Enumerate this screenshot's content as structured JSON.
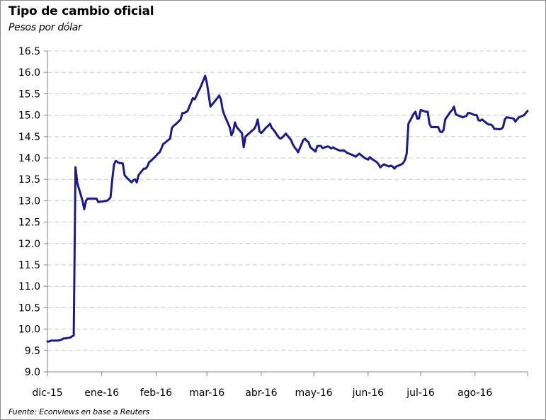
{
  "title": "Tipo de cambio oficial",
  "subtitle": "Pesos por dólar",
  "source": "Fuente: Econviews en base a Reuters",
  "colors": {
    "line": "#1a1a8c",
    "grid": "#c8c8c8",
    "axis": "#808080"
  },
  "chart_data": {
    "type": "line",
    "title": "Tipo de cambio oficial",
    "subtitle": "Pesos por dólar",
    "xlabel": "",
    "ylabel": "",
    "ylim": [
      9.0,
      16.5
    ],
    "yticks": [
      "9.0",
      "9.5",
      "10.0",
      "10.5",
      "11.0",
      "11.5",
      "12.0",
      "12.5",
      "13.0",
      "13.5",
      "14.0",
      "14.5",
      "15.0",
      "15.5",
      "16.0",
      "16.5"
    ],
    "x_tick_labels": [
      "dic-15",
      "ene-16",
      "feb-16",
      "mar-16",
      "abr-16",
      "may-16",
      "jun-16",
      "jul-16",
      "ago-16"
    ],
    "x_tick_dates": [
      "2015-12-01",
      "2016-01-01",
      "2016-02-01",
      "2016-03-01",
      "2016-04-01",
      "2016-05-01",
      "2016-06-01",
      "2016-07-01",
      "2016-08-01"
    ],
    "xlim": [
      "2015-12-01",
      "2016-08-31"
    ],
    "grid": "horizontal dashed",
    "legend": "none",
    "series": [
      {
        "points": [
          [
            "2015-12-01",
            9.71
          ],
          [
            "2015-12-02",
            9.71
          ],
          [
            "2015-12-03",
            9.73
          ],
          [
            "2015-12-04",
            9.73
          ],
          [
            "2015-12-07",
            9.73
          ],
          [
            "2015-12-09",
            9.75
          ],
          [
            "2015-12-10",
            9.78
          ],
          [
            "2015-12-11",
            9.78
          ],
          [
            "2015-12-14",
            9.8
          ],
          [
            "2015-12-15",
            9.83
          ],
          [
            "2015-12-16",
            9.85
          ],
          [
            "2015-12-17",
            13.78
          ],
          [
            "2015-12-18",
            13.42
          ],
          [
            "2015-12-21",
            13.0
          ],
          [
            "2015-12-22",
            12.8
          ],
          [
            "2015-12-23",
            13.0
          ],
          [
            "2015-12-24",
            13.05
          ],
          [
            "2015-12-28",
            13.05
          ],
          [
            "2015-12-29",
            13.05
          ],
          [
            "2015-12-30",
            12.97
          ],
          [
            "2016-01-04",
            13.0
          ],
          [
            "2016-01-05",
            13.03
          ],
          [
            "2016-01-06",
            13.08
          ],
          [
            "2016-01-07",
            13.5
          ],
          [
            "2016-01-08",
            13.85
          ],
          [
            "2016-01-09",
            13.93
          ],
          [
            "2016-01-11",
            13.88
          ],
          [
            "2016-01-12",
            13.88
          ],
          [
            "2016-01-13",
            13.87
          ],
          [
            "2016-01-14",
            13.6
          ],
          [
            "2016-01-15",
            13.55
          ],
          [
            "2016-01-18",
            13.43
          ],
          [
            "2016-01-19",
            13.48
          ],
          [
            "2016-01-20",
            13.5
          ],
          [
            "2016-01-21",
            13.43
          ],
          [
            "2016-01-22",
            13.6
          ],
          [
            "2016-01-25",
            13.75
          ],
          [
            "2016-01-26",
            13.75
          ],
          [
            "2016-01-27",
            13.8
          ],
          [
            "2016-01-28",
            13.9
          ],
          [
            "2016-01-29",
            13.93
          ],
          [
            "2016-02-01",
            14.05
          ],
          [
            "2016-02-02",
            14.1
          ],
          [
            "2016-02-03",
            14.13
          ],
          [
            "2016-02-04",
            14.22
          ],
          [
            "2016-02-05",
            14.32
          ],
          [
            "2016-02-08",
            14.42
          ],
          [
            "2016-02-09",
            14.45
          ],
          [
            "2016-02-10",
            14.7
          ],
          [
            "2016-02-11",
            14.75
          ],
          [
            "2016-02-12",
            14.78
          ],
          [
            "2016-02-15",
            14.9
          ],
          [
            "2016-02-16",
            15.05
          ],
          [
            "2016-02-17",
            15.05
          ],
          [
            "2016-02-18",
            15.07
          ],
          [
            "2016-02-19",
            15.1
          ],
          [
            "2016-02-22",
            15.4
          ],
          [
            "2016-02-23",
            15.37
          ],
          [
            "2016-02-24",
            15.45
          ],
          [
            "2016-02-25",
            15.55
          ],
          [
            "2016-02-26",
            15.62
          ],
          [
            "2016-02-29",
            15.92
          ],
          [
            "2016-03-01",
            15.75
          ],
          [
            "2016-03-02",
            15.48
          ],
          [
            "2016-03-03",
            15.2
          ],
          [
            "2016-03-04",
            15.25
          ],
          [
            "2016-03-07",
            15.4
          ],
          [
            "2016-03-08",
            15.46
          ],
          [
            "2016-03-09",
            15.37
          ],
          [
            "2016-03-10",
            15.12
          ],
          [
            "2016-03-11",
            15.0
          ],
          [
            "2016-03-14",
            14.72
          ],
          [
            "2016-03-15",
            14.53
          ],
          [
            "2016-03-16",
            14.62
          ],
          [
            "2016-03-17",
            14.83
          ],
          [
            "2016-03-18",
            14.72
          ],
          [
            "2016-03-21",
            14.58
          ],
          [
            "2016-03-22",
            14.25
          ],
          [
            "2016-03-23",
            14.5
          ],
          [
            "2016-03-28",
            14.68
          ],
          [
            "2016-03-29",
            14.76
          ],
          [
            "2016-03-30",
            14.9
          ],
          [
            "2016-03-31",
            14.62
          ],
          [
            "2016-04-01",
            14.58
          ],
          [
            "2016-04-04",
            14.72
          ],
          [
            "2016-04-05",
            14.75
          ],
          [
            "2016-04-06",
            14.8
          ],
          [
            "2016-04-07",
            14.7
          ],
          [
            "2016-04-08",
            14.66
          ],
          [
            "2016-04-11",
            14.48
          ],
          [
            "2016-04-12",
            14.45
          ],
          [
            "2016-04-13",
            14.48
          ],
          [
            "2016-04-14",
            14.52
          ],
          [
            "2016-04-15",
            14.57
          ],
          [
            "2016-04-18",
            14.42
          ],
          [
            "2016-04-19",
            14.32
          ],
          [
            "2016-04-20",
            14.25
          ],
          [
            "2016-04-21",
            14.2
          ],
          [
            "2016-04-22",
            14.13
          ],
          [
            "2016-04-25",
            14.42
          ],
          [
            "2016-04-26",
            14.45
          ],
          [
            "2016-04-27",
            14.4
          ],
          [
            "2016-04-28",
            14.37
          ],
          [
            "2016-04-29",
            14.25
          ],
          [
            "2016-05-02",
            14.15
          ],
          [
            "2016-05-03",
            14.28
          ],
          [
            "2016-05-04",
            14.28
          ],
          [
            "2016-05-05",
            14.28
          ],
          [
            "2016-05-06",
            14.23
          ],
          [
            "2016-05-09",
            14.27
          ],
          [
            "2016-05-10",
            14.25
          ],
          [
            "2016-05-11",
            14.22
          ],
          [
            "2016-05-12",
            14.25
          ],
          [
            "2016-05-13",
            14.22
          ],
          [
            "2016-05-16",
            14.17
          ],
          [
            "2016-05-17",
            14.17
          ],
          [
            "2016-05-18",
            14.18
          ],
          [
            "2016-05-19",
            14.15
          ],
          [
            "2016-05-20",
            14.12
          ],
          [
            "2016-05-23",
            14.07
          ],
          [
            "2016-05-24",
            14.05
          ],
          [
            "2016-05-25",
            14.03
          ],
          [
            "2016-05-26",
            14.07
          ],
          [
            "2016-05-27",
            14.1
          ],
          [
            "2016-05-30",
            14.0
          ],
          [
            "2016-05-31",
            13.98
          ],
          [
            "2016-06-01",
            13.96
          ],
          [
            "2016-06-02",
            14.02
          ],
          [
            "2016-06-03",
            13.98
          ],
          [
            "2016-06-06",
            13.9
          ],
          [
            "2016-06-07",
            13.85
          ],
          [
            "2016-06-08",
            13.78
          ],
          [
            "2016-06-09",
            13.82
          ],
          [
            "2016-06-10",
            13.85
          ],
          [
            "2016-06-13",
            13.8
          ],
          [
            "2016-06-14",
            13.82
          ],
          [
            "2016-06-15",
            13.8
          ],
          [
            "2016-06-16",
            13.75
          ],
          [
            "2016-06-17",
            13.8
          ],
          [
            "2016-06-20",
            13.85
          ],
          [
            "2016-06-21",
            13.88
          ],
          [
            "2016-06-22",
            13.95
          ],
          [
            "2016-06-23",
            14.1
          ],
          [
            "2016-06-24",
            14.8
          ],
          [
            "2016-06-27",
            15.03
          ],
          [
            "2016-06-28",
            15.08
          ],
          [
            "2016-06-29",
            14.92
          ],
          [
            "2016-06-30",
            14.92
          ],
          [
            "2016-07-01",
            15.12
          ],
          [
            "2016-07-04",
            15.08
          ],
          [
            "2016-07-05",
            15.08
          ],
          [
            "2016-07-06",
            14.8
          ],
          [
            "2016-07-07",
            14.72
          ],
          [
            "2016-07-08",
            14.72
          ],
          [
            "2016-07-11",
            14.72
          ],
          [
            "2016-07-12",
            14.62
          ],
          [
            "2016-07-13",
            14.6
          ],
          [
            "2016-07-14",
            14.65
          ],
          [
            "2016-07-15",
            14.9
          ],
          [
            "2016-07-18",
            15.08
          ],
          [
            "2016-07-19",
            15.12
          ],
          [
            "2016-07-20",
            15.2
          ],
          [
            "2016-07-21",
            15.02
          ],
          [
            "2016-07-22",
            15.0
          ],
          [
            "2016-07-25",
            14.95
          ],
          [
            "2016-07-26",
            14.97
          ],
          [
            "2016-07-27",
            14.98
          ],
          [
            "2016-07-28",
            15.05
          ],
          [
            "2016-07-29",
            15.05
          ],
          [
            "2016-08-01",
            15.0
          ],
          [
            "2016-08-02",
            15.0
          ],
          [
            "2016-08-03",
            14.88
          ],
          [
            "2016-08-04",
            14.87
          ],
          [
            "2016-08-05",
            14.9
          ],
          [
            "2016-08-08",
            14.8
          ],
          [
            "2016-08-09",
            14.78
          ],
          [
            "2016-08-10",
            14.78
          ],
          [
            "2016-08-11",
            14.75
          ],
          [
            "2016-08-12",
            14.68
          ],
          [
            "2016-08-15",
            14.67
          ],
          [
            "2016-08-16",
            14.68
          ],
          [
            "2016-08-17",
            14.72
          ],
          [
            "2016-08-18",
            14.9
          ],
          [
            "2016-08-19",
            14.95
          ],
          [
            "2016-08-22",
            14.93
          ],
          [
            "2016-08-23",
            14.92
          ],
          [
            "2016-08-24",
            14.85
          ],
          [
            "2016-08-25",
            14.9
          ],
          [
            "2016-08-26",
            14.95
          ],
          [
            "2016-08-29",
            15.0
          ],
          [
            "2016-08-30",
            15.05
          ],
          [
            "2016-08-31",
            15.1
          ]
        ]
      }
    ]
  }
}
